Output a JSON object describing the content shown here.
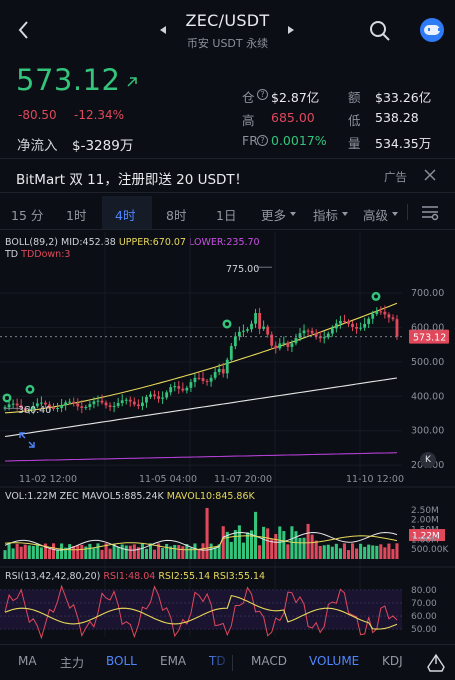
{
  "header": {
    "title": "ZEC/USDT",
    "subtitle": "币安 USDT 永续"
  },
  "ticker": {
    "last_price": "573.12",
    "change": "-80.50",
    "change_pct": "-12.34%",
    "net_inflow_label": "净流入",
    "net_inflow_value": "$-3289万"
  },
  "stats": {
    "oi_label": "仓",
    "oi_value": "$2.87亿",
    "amount_label": "额",
    "amount_value": "$33.26亿",
    "high_label": "高",
    "high_value": "685.00",
    "low_label": "低",
    "low_value": "538.28",
    "fr_label": "FR",
    "fr_value": "0.0017%",
    "volume_label": "量",
    "volume_value": "534.35万"
  },
  "ad": {
    "text": "BitMart 双 11，注册即送 20 USDT！",
    "tag": "广告"
  },
  "timeframes": {
    "items": [
      "15 分",
      "1时",
      "4时",
      "8时",
      "1日",
      "更多",
      "指标",
      "高级"
    ],
    "active": "4时"
  },
  "main_legend": {
    "boll": "BOLL(89,2)",
    "mid": "MID:452.88",
    "upper": "UPPER:670.07",
    "lower": "LOWER:235.70",
    "td": "TD",
    "tddown": "TDDown:3"
  },
  "colors": {
    "up": "#34c47c",
    "down": "#e0485c",
    "accent": "#4f86ff",
    "mid_line": "#e6e6e6",
    "upper_line": "#e7d85a",
    "lower_line": "#b23fd3"
  },
  "chart_data": [
    {
      "type": "candlestick",
      "y_ticks": [
        "700.00",
        "600.00",
        "500.00",
        "400.00",
        "300.00",
        "200.00"
      ],
      "ylim": [
        180,
        790
      ],
      "x_ticks": [
        "11-02 12:00",
        "11-05 04:00",
        "11-07 20:00",
        "11-10 12:00"
      ],
      "last_price_tag": "573.12",
      "annotations": {
        "high": "775.00",
        "low": "360.40"
      },
      "indicators": {
        "mid": 452.88,
        "upper": 670.07,
        "lower": 235.7
      }
    },
    {
      "type": "bar",
      "title": "VOL:1.22M ZEC",
      "legend": {
        "mavol5": "MAVOL5:885.24K",
        "mavol10": "MAVOL10:845.86K"
      },
      "y_ticks": [
        "2.50M",
        "2.00M",
        "1.50M",
        "1.22M",
        "1.00M",
        "500.00K"
      ]
    },
    {
      "type": "line",
      "title": "RSI(13,42,42,80,20)",
      "legend": {
        "rsi1": "RSI1:48.04",
        "rsi2": "RSI2:55.14",
        "rsi3": "RSI3:55.14"
      },
      "y_ticks": [
        "80.00",
        "70.00",
        "60.00",
        "50.00"
      ],
      "ylim": [
        44,
        86
      ]
    }
  ],
  "bottom_nav": {
    "items": [
      "MA",
      "主力",
      "BOLL",
      "EMA",
      "TD",
      "MACD",
      "VOLUME",
      "KDJ"
    ],
    "active": [
      "BOLL",
      "TD",
      "VOLUME"
    ]
  }
}
